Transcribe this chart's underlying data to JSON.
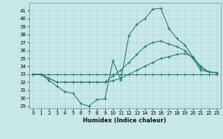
{
  "xlabel": "Humidex (Indice chaleur)",
  "ylabel": "",
  "bg_color": "#c8e8e8",
  "line_color": "#217a6e",
  "xlim": [
    -0.5,
    23.5
  ],
  "ylim": [
    28.7,
    42.0
  ],
  "yticks": [
    29,
    30,
    31,
    32,
    33,
    34,
    35,
    36,
    37,
    38,
    39,
    40,
    41
  ],
  "xticks": [
    0,
    1,
    2,
    3,
    4,
    5,
    6,
    7,
    8,
    9,
    10,
    11,
    12,
    13,
    14,
    15,
    16,
    17,
    18,
    19,
    20,
    21,
    22,
    23
  ],
  "series": [
    {
      "x": [
        0,
        1,
        2,
        3,
        4,
        5,
        6,
        7,
        8,
        9,
        10,
        11,
        12,
        13,
        14,
        15,
        16,
        17,
        18,
        19,
        20,
        21,
        22,
        23
      ],
      "y": [
        33,
        33,
        32.2,
        31.5,
        30.8,
        30.6,
        29.3,
        29.0,
        29.8,
        29.9,
        34.7,
        32.3,
        37.9,
        39.3,
        40.0,
        41.2,
        41.3,
        38.8,
        37.5,
        36.7,
        35.2,
        34.0,
        33.3,
        33.2
      ]
    },
    {
      "x": [
        0,
        1,
        2,
        3,
        4,
        5,
        6,
        7,
        8,
        9,
        10,
        11,
        12,
        13,
        14,
        15,
        16,
        17,
        18,
        19,
        20,
        21,
        22,
        23
      ],
      "y": [
        33,
        33,
        33,
        33,
        33,
        33,
        33,
        33,
        33,
        33,
        33,
        33,
        33,
        33,
        33,
        33,
        33,
        33,
        33,
        33,
        33,
        33,
        33,
        33
      ]
    },
    {
      "x": [
        0,
        1,
        2,
        3,
        4,
        5,
        6,
        7,
        8,
        9,
        10,
        11,
        12,
        13,
        14,
        15,
        16,
        17,
        18,
        19,
        20,
        21,
        22,
        23
      ],
      "y": [
        33,
        33,
        32.5,
        32.0,
        32.0,
        32.0,
        32.0,
        32.0,
        32.0,
        32.0,
        32.2,
        32.5,
        33.0,
        33.5,
        34.0,
        34.5,
        35.0,
        35.2,
        35.5,
        35.6,
        35.2,
        33.8,
        33.3,
        33.2
      ]
    },
    {
      "x": [
        0,
        1,
        2,
        3,
        4,
        5,
        6,
        7,
        8,
        9,
        10,
        11,
        12,
        13,
        14,
        15,
        16,
        17,
        18,
        19,
        20,
        21,
        22,
        23
      ],
      "y": [
        33,
        33,
        32.5,
        32.0,
        32.0,
        32.0,
        32.0,
        32.0,
        32.0,
        32.0,
        32.8,
        33.5,
        34.5,
        35.5,
        36.5,
        37.0,
        37.2,
        36.8,
        36.5,
        36.0,
        35.0,
        33.5,
        33.3,
        33.2
      ]
    }
  ]
}
